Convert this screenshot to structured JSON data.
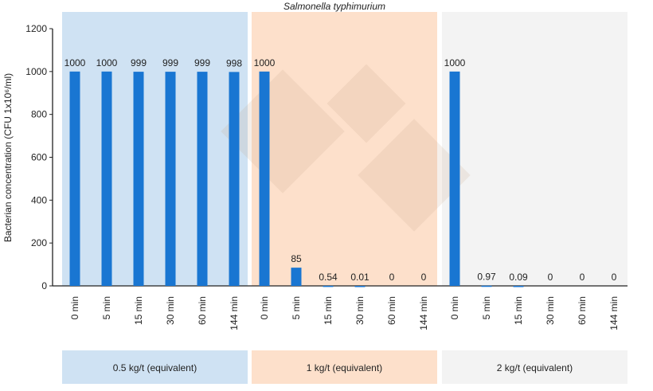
{
  "chart_data": {
    "type": "bar",
    "title": "Salmonella typhimurium",
    "ylabel": "Bacterian concentration (CFU 1x10⁶/ml)",
    "ylim": [
      0,
      1200
    ],
    "yticks": [
      0,
      200,
      400,
      600,
      800,
      1000,
      1200
    ],
    "grid": false,
    "bar_color": "#1976d2",
    "groups": [
      {
        "label": "0.5 kg/t (equivalent)",
        "color": "#cfe2f3",
        "categories": [
          "0 min",
          "5 min",
          "15 min",
          "30 min",
          "60 min",
          "144 min"
        ],
        "values": [
          1000,
          1000,
          999,
          999,
          999,
          998
        ],
        "labels": [
          "1000",
          "1000",
          "999",
          "999",
          "999",
          "998"
        ]
      },
      {
        "label": "1 kg/t (equivalent)",
        "color": "#fde0cb",
        "categories": [
          "0 min",
          "5 min",
          "15 min",
          "30 min",
          "60 min",
          "144 min"
        ],
        "values": [
          1000,
          85,
          0.54,
          0.01,
          0,
          0
        ],
        "labels": [
          "1000",
          "85",
          "0.54",
          "0.01",
          "0",
          "0"
        ]
      },
      {
        "label": "2 kg/t (equivalent)",
        "color": "#f3f3f3",
        "categories": [
          "0 min",
          "5 min",
          "15 min",
          "30 min",
          "60 min",
          "144 min"
        ],
        "values": [
          1000,
          0.97,
          0.09,
          0,
          0,
          0
        ],
        "labels": [
          "1000",
          "0.97",
          "0.09",
          "0",
          "0",
          "0"
        ]
      }
    ]
  }
}
